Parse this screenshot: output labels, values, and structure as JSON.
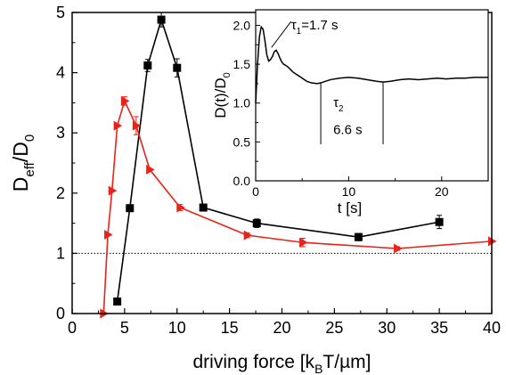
{
  "chart_data": [
    {
      "type": "line",
      "title": "",
      "xlabel": {
        "base": "driving force [k",
        "sub": "B",
        "rest": "T/µm]"
      },
      "ylabel": {
        "base": "D",
        "sub1": "eff",
        "mid": "/D",
        "sub2": "0"
      },
      "xlim": [
        0,
        40
      ],
      "ylim": [
        0,
        5
      ],
      "x_ticks": [
        0,
        5,
        10,
        15,
        20,
        25,
        30,
        35,
        40
      ],
      "y_ticks": [
        0,
        1,
        2,
        3,
        4,
        5
      ],
      "grid": false,
      "reference_line": {
        "y": 1,
        "style": "dotted"
      },
      "series": [
        {
          "marker": "square",
          "color": "#000000",
          "points": [
            {
              "x": 4.3,
              "y": 0.2,
              "err": 0
            },
            {
              "x": 5.5,
              "y": 1.75,
              "err": 0
            },
            {
              "x": 7.2,
              "y": 4.12,
              "err": 0.1
            },
            {
              "x": 8.5,
              "y": 4.88,
              "err": 0.12
            },
            {
              "x": 10.0,
              "y": 4.08,
              "err": 0.15
            },
            {
              "x": 12.5,
              "y": 1.76,
              "err": 0
            },
            {
              "x": 17.6,
              "y": 1.5,
              "err": 0.07
            },
            {
              "x": 27.3,
              "y": 1.27,
              "err": 0.06
            },
            {
              "x": 35.0,
              "y": 1.52,
              "err": 0.11
            }
          ]
        },
        {
          "marker": "triangle-right",
          "color": "#e8231a",
          "points": [
            {
              "x": 3.0,
              "y": 0.0,
              "err": 0
            },
            {
              "x": 3.4,
              "y": 1.31,
              "err": 0
            },
            {
              "x": 3.8,
              "y": 2.04,
              "err": 0
            },
            {
              "x": 4.3,
              "y": 3.12,
              "err": 0
            },
            {
              "x": 5.0,
              "y": 3.53,
              "err": 0.07
            },
            {
              "x": 6.1,
              "y": 3.12,
              "err": 0.15
            },
            {
              "x": 7.4,
              "y": 2.39,
              "err": 0
            },
            {
              "x": 10.3,
              "y": 1.76,
              "err": 0.05
            },
            {
              "x": 16.7,
              "y": 1.3,
              "err": 0.04
            },
            {
              "x": 22.0,
              "y": 1.18,
              "err": 0.07
            },
            {
              "x": 31.0,
              "y": 1.08,
              "err": 0.03
            },
            {
              "x": 40.0,
              "y": 1.2,
              "err": 0
            }
          ]
        }
      ]
    },
    {
      "type": "line",
      "title": "",
      "xlabel": "t [s]",
      "ylabel": {
        "base": "D(t)/D",
        "sub": "0"
      },
      "xlim": [
        0,
        25
      ],
      "ylim": [
        0,
        2.2
      ],
      "x_ticks": [
        0,
        10,
        20
      ],
      "y_ticks": [
        0.0,
        0.5,
        1.0,
        1.5,
        2.0
      ],
      "y_tick_labels": [
        "0.0",
        "0.5",
        "1.0",
        "1.5",
        "2.0"
      ],
      "grid": false,
      "series": [
        {
          "color": "#000000",
          "x": [
            0.0,
            0.2,
            0.4,
            0.6,
            0.8,
            1.0,
            1.2,
            1.4,
            1.6,
            1.8,
            2.0,
            2.2,
            2.4,
            2.6,
            2.8,
            3.0,
            3.3,
            3.6,
            4.0,
            4.5,
            5.0,
            5.5,
            6.0,
            6.6,
            7.0,
            8.0,
            9.0,
            10.0,
            11.0,
            12.0,
            13.0,
            13.7,
            14.5,
            15.5,
            16.5,
            17.5,
            18.5,
            19.5,
            20.5,
            21.5,
            22.5,
            23.5,
            24.5,
            25.0
          ],
          "y": [
            1.0,
            1.5,
            1.85,
            1.98,
            1.95,
            1.8,
            1.62,
            1.54,
            1.56,
            1.6,
            1.66,
            1.68,
            1.64,
            1.58,
            1.53,
            1.5,
            1.48,
            1.45,
            1.4,
            1.36,
            1.32,
            1.28,
            1.26,
            1.25,
            1.26,
            1.3,
            1.32,
            1.33,
            1.32,
            1.3,
            1.28,
            1.27,
            1.28,
            1.3,
            1.31,
            1.3,
            1.31,
            1.32,
            1.31,
            1.32,
            1.32,
            1.33,
            1.33,
            1.33
          ]
        }
      ],
      "annotations": [
        {
          "label": "τ",
          "sub": "1",
          "rest": "=1.7 s",
          "at_x": 1.7
        },
        {
          "label": "τ",
          "sub": "2",
          "rest": "",
          "value": "6.6 s",
          "from_x": 7.0,
          "to_x": 13.7
        }
      ]
    }
  ]
}
